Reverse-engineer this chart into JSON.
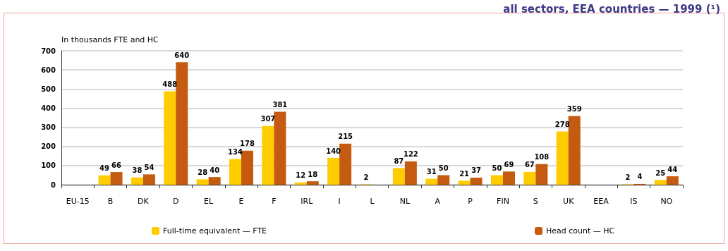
{
  "chart_data": {
    "type": "bar",
    "title": "all sectors, EEA countries — 1999 (¹)",
    "ylabel": "In thousands FTE and HC",
    "categories": [
      "EU-15",
      "B",
      "DK",
      "D",
      "EL",
      "E",
      "F",
      "IRL",
      "I",
      "L",
      "NL",
      "A",
      "P",
      "FIN",
      "S",
      "UK",
      "EEA",
      "IS",
      "NO"
    ],
    "series": [
      {
        "name": "Full-time equivalent — FTE",
        "color": "#ffcc00",
        "values": [
          null,
          49,
          38,
          488,
          28,
          134,
          307,
          12,
          140,
          2,
          87,
          31,
          21,
          50,
          67,
          278,
          null,
          2,
          25
        ]
      },
      {
        "name": "Head count — HC",
        "color": "#c55a11",
        "values": [
          null,
          66,
          54,
          640,
          40,
          178,
          381,
          18,
          215,
          null,
          122,
          50,
          37,
          69,
          108,
          359,
          null,
          4,
          44
        ]
      }
    ],
    "ylim": [
      0,
      700
    ],
    "yticks": [
      0,
      100,
      200,
      300,
      400,
      500,
      600,
      700
    ],
    "grid": "y",
    "legend": "bottom",
    "data_labels": true
  }
}
